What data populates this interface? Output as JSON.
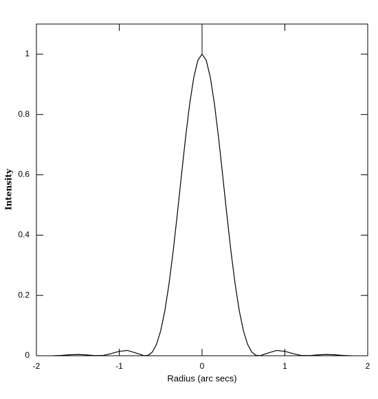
{
  "chart_data": {
    "type": "line",
    "xlabel": "Radius (arc secs)",
    "ylabel": "Intensity",
    "x": [
      -1.8,
      -1.7,
      -1.6,
      -1.5,
      -1.4,
      -1.3,
      -1.2,
      -1.1,
      -1.0,
      -0.9,
      -0.8,
      -0.7,
      -0.65,
      -0.6,
      -0.55,
      -0.5,
      -0.45,
      -0.4,
      -0.35,
      -0.3,
      -0.25,
      -0.2,
      -0.15,
      -0.1,
      -0.05,
      0,
      0.05,
      0.1,
      0.15,
      0.2,
      0.25,
      0.3,
      0.35,
      0.4,
      0.45,
      0.5,
      0.55,
      0.6,
      0.65,
      0.7,
      0.8,
      0.9,
      1.0,
      1.1,
      1.2,
      1.3,
      1.4,
      1.5,
      1.6,
      1.7,
      1.8
    ],
    "values": [
      0.0,
      0.0011,
      0.0031,
      0.0042,
      0.0029,
      0.0005,
      0.0008,
      0.007,
      0.0147,
      0.0174,
      0.0092,
      0.0002,
      0.0014,
      0.0123,
      0.0378,
      0.0822,
      0.1481,
      0.2363,
      0.3441,
      0.4664,
      0.5954,
      0.7215,
      0.8343,
      0.923,
      0.9803,
      1.0,
      0.9803,
      0.923,
      0.8343,
      0.7215,
      0.5954,
      0.4664,
      0.3441,
      0.2363,
      0.1481,
      0.0822,
      0.0378,
      0.0123,
      0.0014,
      0.0002,
      0.0092,
      0.0174,
      0.0147,
      0.007,
      0.0008,
      0.0005,
      0.0029,
      0.0042,
      0.0031,
      0.0011,
      0.0
    ],
    "color": "#000000",
    "vline": 0,
    "xlim": [
      -2,
      2
    ],
    "xticks": [
      -2,
      -1,
      0,
      1,
      2
    ],
    "ylim": [
      0,
      1.1
    ],
    "yticks": [
      0,
      0.2,
      0.4,
      0.6,
      0.8,
      1
    ]
  }
}
